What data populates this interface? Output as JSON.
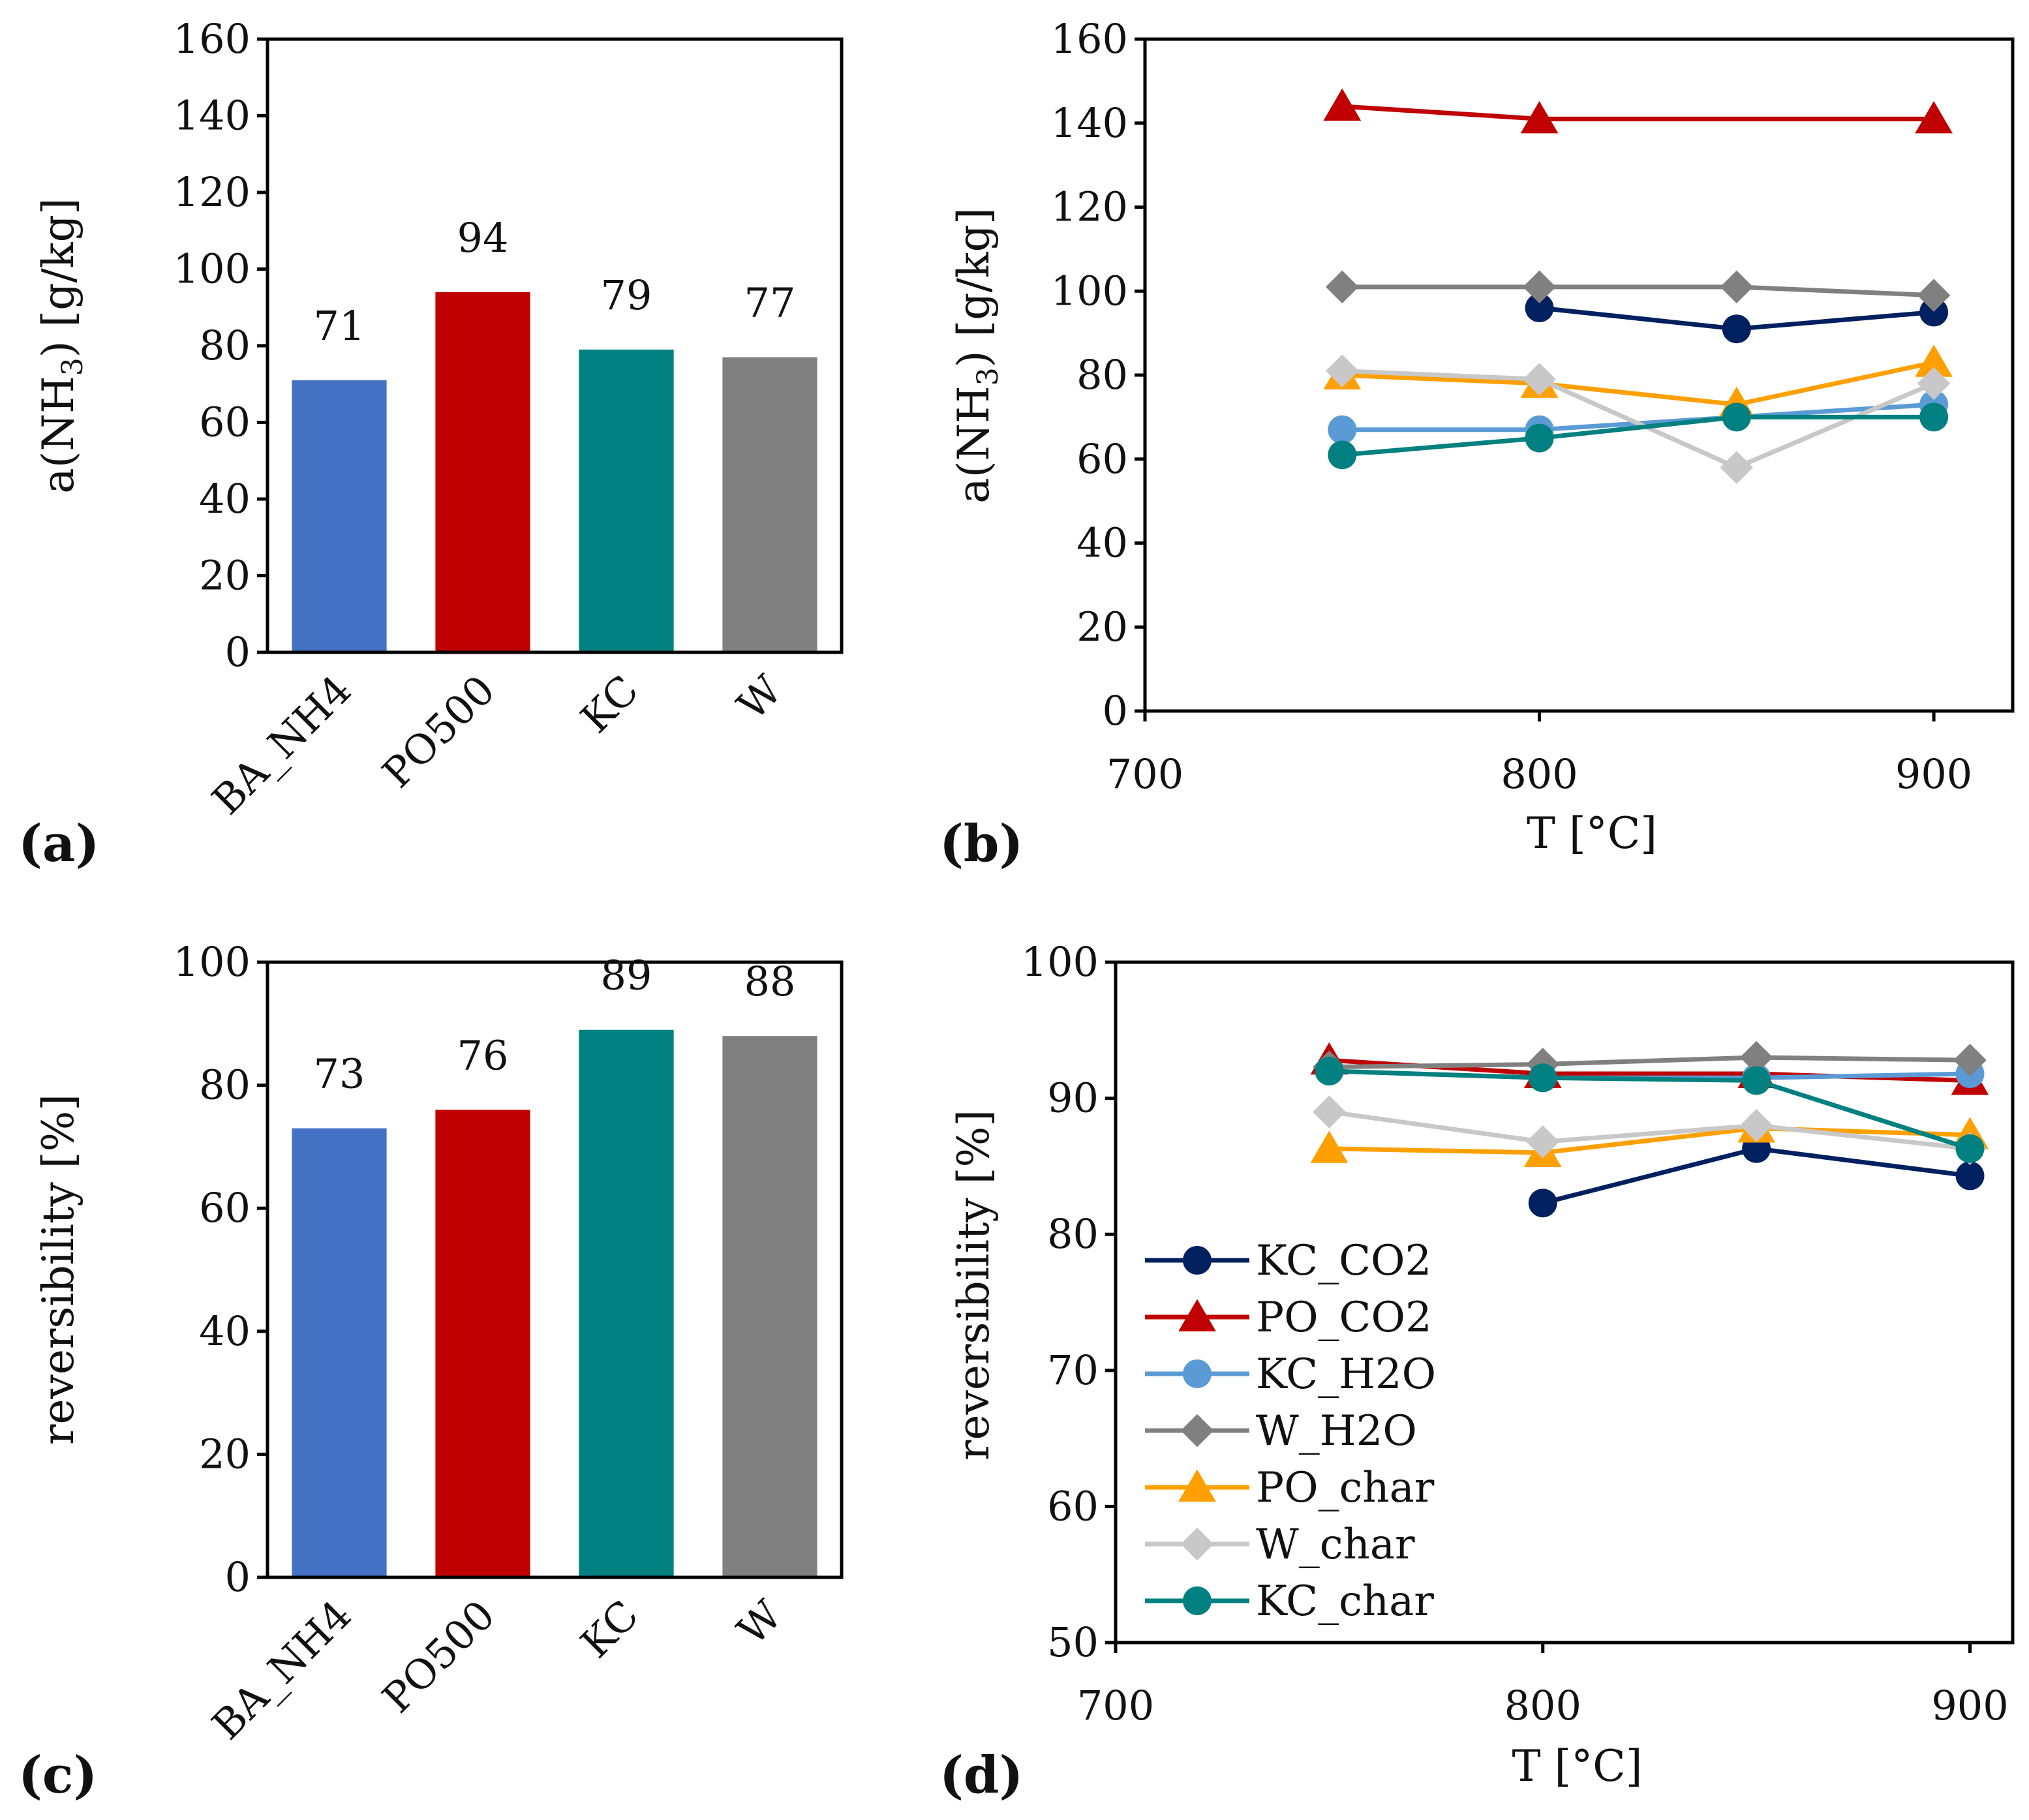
{
  "panels": {
    "a": {
      "letter": "(a)"
    },
    "b": {
      "letter": "(b)"
    },
    "c": {
      "letter": "(c)"
    },
    "d": {
      "letter": "(d)"
    }
  },
  "chart_data": [
    {
      "id": "a",
      "type": "bar",
      "ylabel_main": "a(NH",
      "ylabel_sub": "3",
      "ylabel_tail": ") [g/kg]",
      "ylim": [
        0,
        160
      ],
      "yticks": [
        0,
        20,
        40,
        60,
        80,
        100,
        120,
        140,
        160
      ],
      "categories": [
        "BA_NH4",
        "PO500",
        "KC",
        "W"
      ],
      "values": [
        71,
        94,
        79,
        77
      ],
      "colors": [
        "#4472c4",
        "#c00000",
        "#008080",
        "#808080"
      ],
      "value_labels": [
        "71",
        "94",
        "79",
        "77"
      ]
    },
    {
      "id": "b",
      "type": "line",
      "xlabel": "T [°C]",
      "ylabel_main": "a(NH",
      "ylabel_sub": "3",
      "ylabel_tail": ") [g/kg]",
      "xlim": [
        700,
        920
      ],
      "xticks": [
        700,
        800,
        900
      ],
      "ylim": [
        0,
        160
      ],
      "yticks": [
        0,
        20,
        40,
        60,
        80,
        100,
        120,
        140,
        160
      ],
      "series": [
        {
          "name": "KC_CO2",
          "color": "#002060",
          "marker": "circle",
          "x": [
            800,
            850,
            900
          ],
          "values": [
            96,
            91,
            95
          ]
        },
        {
          "name": "PO_CO2",
          "color": "#c00000",
          "marker": "triangle",
          "x": [
            750,
            800,
            900
          ],
          "values": [
            144,
            141,
            141
          ]
        },
        {
          "name": "KC_H2O",
          "color": "#5b9bd5",
          "marker": "circle",
          "x": [
            750,
            800,
            850,
            900
          ],
          "values": [
            67,
            67,
            70,
            73
          ]
        },
        {
          "name": "W_H2O",
          "color": "#808080",
          "marker": "diamond",
          "x": [
            750,
            800,
            850,
            900
          ],
          "values": [
            101,
            101,
            101,
            99
          ]
        },
        {
          "name": "PO_char",
          "color": "#ffa000",
          "marker": "triangle",
          "x": [
            750,
            800,
            850,
            900
          ],
          "values": [
            80,
            78,
            73,
            83
          ]
        },
        {
          "name": "W_char",
          "color": "#c8c8c8",
          "marker": "diamond",
          "x": [
            750,
            800,
            850,
            900
          ],
          "values": [
            81,
            79,
            58,
            78
          ]
        },
        {
          "name": "KC_char",
          "color": "#008080",
          "marker": "circle",
          "x": [
            750,
            800,
            850,
            900
          ],
          "values": [
            61,
            65,
            70,
            70
          ]
        }
      ]
    },
    {
      "id": "c",
      "type": "bar",
      "ylabel": "reversibility [%]",
      "ylim": [
        0,
        100
      ],
      "yticks": [
        0,
        20,
        40,
        60,
        80,
        100
      ],
      "categories": [
        "BA_NH4",
        "PO500",
        "KC",
        "W"
      ],
      "values": [
        73,
        76,
        89,
        88
      ],
      "colors": [
        "#4472c4",
        "#c00000",
        "#008080",
        "#808080"
      ],
      "value_labels": [
        "73",
        "76",
        "89",
        "88"
      ]
    },
    {
      "id": "d",
      "type": "line",
      "xlabel": "T [°C]",
      "ylabel": "reversibility [%]",
      "xlim": [
        700,
        910
      ],
      "xticks": [
        700,
        800,
        900
      ],
      "ylim": [
        50,
        100
      ],
      "yticks": [
        50,
        60,
        70,
        80,
        90,
        100
      ],
      "legend": "lower-left",
      "series": [
        {
          "name": "KC_CO2",
          "color": "#002060",
          "marker": "circle",
          "x": [
            800,
            850,
            900
          ],
          "values": [
            82.3,
            86.3,
            84.3
          ]
        },
        {
          "name": "PO_CO2",
          "color": "#c00000",
          "marker": "triangle",
          "x": [
            750,
            800,
            850,
            900
          ],
          "values": [
            92.8,
            91.8,
            91.8,
            91.3
          ]
        },
        {
          "name": "KC_H2O",
          "color": "#5b9bd5",
          "marker": "circle",
          "x": [
            750,
            800,
            850,
            900
          ],
          "values": [
            92.0,
            91.5,
            91.5,
            91.8
          ]
        },
        {
          "name": "W_H2O",
          "color": "#808080",
          "marker": "diamond",
          "x": [
            750,
            800,
            850,
            900
          ],
          "values": [
            92.3,
            92.5,
            93.0,
            92.8
          ]
        },
        {
          "name": "PO_char",
          "color": "#ffa000",
          "marker": "triangle",
          "x": [
            750,
            800,
            850,
            900
          ],
          "values": [
            86.3,
            86.0,
            87.8,
            87.3
          ]
        },
        {
          "name": "W_char",
          "color": "#c8c8c8",
          "marker": "diamond",
          "x": [
            750,
            800,
            850,
            900
          ],
          "values": [
            89.0,
            86.8,
            88.0,
            86.3
          ]
        },
        {
          "name": "KC_char",
          "color": "#008080",
          "marker": "circle",
          "x": [
            750,
            800,
            850,
            900
          ],
          "values": [
            92.0,
            91.5,
            91.3,
            86.3
          ]
        }
      ]
    }
  ]
}
